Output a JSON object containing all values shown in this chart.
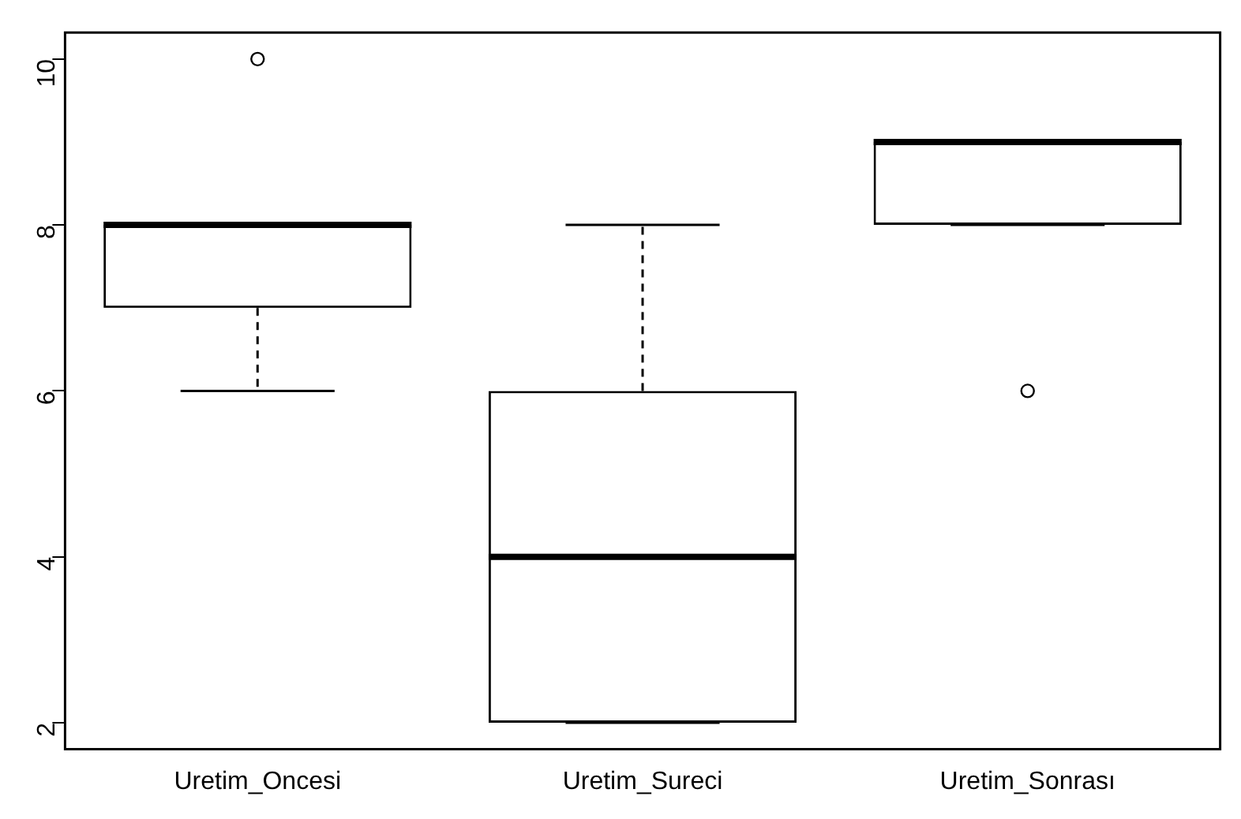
{
  "chart_data": {
    "type": "box",
    "categories": [
      "Uretim_Oncesi",
      "Uretim_Sureci",
      "Uretim_Sonrası"
    ],
    "boxes": [
      {
        "low": 6,
        "q1": 7,
        "median": 8,
        "q3": 8,
        "high": 8,
        "outliers": [
          10
        ]
      },
      {
        "low": 2,
        "q1": 2,
        "median": 4,
        "q3": 6,
        "high": 8
      },
      {
        "low": 8,
        "q1": 8,
        "median": 9,
        "q3": 9,
        "high": 9,
        "outliers": [
          6
        ]
      }
    ],
    "ylim": [
      1.68,
      10.32
    ],
    "yticks": [
      2,
      4,
      6,
      8,
      10
    ],
    "grid": false,
    "legend": false
  }
}
